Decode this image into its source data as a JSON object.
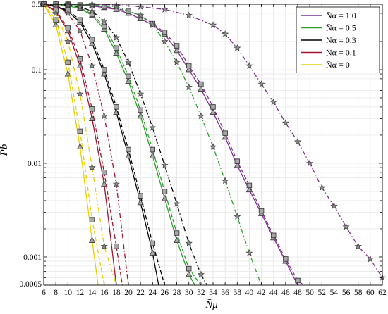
{
  "chart_data": {
    "type": "line",
    "xlabel": "N̄μ",
    "ylabel": "Pb",
    "xlim": [
      6,
      62
    ],
    "ylim": [
      0.0005,
      0.5
    ],
    "yscale": "log",
    "grid": true,
    "legend_position": "top-right",
    "x_ticks": [
      "6",
      "8",
      "10",
      "12",
      "14",
      "16",
      "18",
      "20",
      "22",
      "24",
      "26",
      "28",
      "30",
      "32",
      "34",
      "36",
      "38",
      "40",
      "42",
      "44",
      "46",
      "48",
      "50",
      "52",
      "54",
      "56",
      "58",
      "60",
      "62"
    ],
    "y_ticks": [
      {
        "value": 0.5,
        "label": "0.5"
      },
      {
        "value": 0.1,
        "label": "0.1"
      },
      {
        "value": 0.01,
        "label": "0.01"
      },
      {
        "value": 0.001,
        "label": "0.001"
      },
      {
        "value": 0.0005,
        "label": "0.0005"
      }
    ],
    "legend": [
      {
        "label": "N̄α = 1.0",
        "color": "#7e2f8e"
      },
      {
        "label": "N̄α = 0.5",
        "color": "#2ca02c"
      },
      {
        "label": "N̄α = 0.3",
        "color": "#000000"
      },
      {
        "label": "N̄α = 0.1",
        "color": "#a2142f"
      },
      {
        "label": "N̄α = 0",
        "color": "#e8d000"
      }
    ],
    "series": [
      {
        "group": "N̄α = 1.0",
        "style": "solid",
        "marker": "triangle",
        "color": "#7e2f8e",
        "x": [
          6,
          8,
          10,
          12,
          14,
          16,
          18,
          20,
          22,
          24,
          26,
          28,
          30,
          32,
          34,
          36,
          38,
          40,
          42,
          44,
          46,
          48
        ],
        "y": [
          0.5,
          0.5,
          0.5,
          0.49,
          0.48,
          0.46,
          0.44,
          0.4,
          0.35,
          0.3,
          0.24,
          0.16,
          0.1,
          0.062,
          0.035,
          0.019,
          0.0095,
          0.0052,
          0.0029,
          0.0016,
          0.0009,
          0.0005
        ]
      },
      {
        "group": "N̄α = 1.0",
        "style": "dashed",
        "marker": "square",
        "color": "#7e2f8e",
        "x": [
          6,
          8,
          10,
          12,
          14,
          16,
          18,
          20,
          22,
          24,
          26,
          28,
          30,
          32,
          34,
          36,
          38,
          40,
          42,
          44,
          46,
          48,
          49
        ],
        "y": [
          0.5,
          0.5,
          0.5,
          0.49,
          0.48,
          0.47,
          0.45,
          0.42,
          0.38,
          0.31,
          0.25,
          0.18,
          0.11,
          0.07,
          0.04,
          0.021,
          0.0105,
          0.0058,
          0.0031,
          0.0017,
          0.00095,
          0.00056,
          0.0005
        ]
      },
      {
        "group": "N̄α = 1.0",
        "style": "dashdot",
        "marker": "star",
        "color": "#7e2f8e",
        "x": [
          6,
          10,
          14,
          18,
          22,
          26,
          30,
          34,
          36,
          38,
          40,
          42,
          44,
          46,
          48,
          50,
          52,
          54,
          56,
          58,
          60,
          62
        ],
        "y": [
          0.5,
          0.5,
          0.5,
          0.49,
          0.47,
          0.44,
          0.38,
          0.3,
          0.24,
          0.17,
          0.11,
          0.07,
          0.045,
          0.027,
          0.017,
          0.01,
          0.0055,
          0.0035,
          0.0021,
          0.0013,
          0.00095,
          0.0006
        ]
      },
      {
        "group": "N̄α = 0.5",
        "style": "solid",
        "marker": "triangle",
        "color": "#2ca02c",
        "x": [
          6,
          8,
          10,
          12,
          14,
          16,
          18,
          20,
          22,
          24,
          26,
          28,
          30,
          31
        ],
        "y": [
          0.5,
          0.5,
          0.48,
          0.45,
          0.38,
          0.27,
          0.15,
          0.075,
          0.032,
          0.012,
          0.0042,
          0.0015,
          0.00065,
          0.0005
        ]
      },
      {
        "group": "N̄α = 0.5",
        "style": "dashed",
        "marker": "square",
        "color": "#2ca02c",
        "x": [
          6,
          8,
          10,
          12,
          14,
          16,
          18,
          20,
          22,
          24,
          26,
          28,
          30,
          32
        ],
        "y": [
          0.5,
          0.5,
          0.49,
          0.46,
          0.39,
          0.29,
          0.17,
          0.085,
          0.037,
          0.014,
          0.005,
          0.0018,
          0.00075,
          0.0005
        ]
      },
      {
        "group": "N̄α = 0.5",
        "style": "dashdot",
        "marker": "star",
        "color": "#2ca02c",
        "x": [
          6,
          10,
          14,
          18,
          22,
          24,
          26,
          28,
          30,
          32,
          34,
          36,
          38,
          40,
          42
        ],
        "y": [
          0.5,
          0.5,
          0.49,
          0.47,
          0.38,
          0.3,
          0.2,
          0.12,
          0.065,
          0.032,
          0.015,
          0.0065,
          0.0027,
          0.0011,
          0.0005
        ]
      },
      {
        "group": "N̄α = 0.3",
        "style": "solid",
        "marker": "triangle",
        "color": "#000000",
        "x": [
          6,
          8,
          10,
          12,
          14,
          16,
          18,
          20,
          22,
          24,
          25
        ],
        "y": [
          0.5,
          0.47,
          0.42,
          0.32,
          0.19,
          0.09,
          0.035,
          0.012,
          0.0038,
          0.0011,
          0.0005
        ]
      },
      {
        "group": "N̄α = 0.3",
        "style": "dashed",
        "marker": "square",
        "color": "#000000",
        "x": [
          6,
          8,
          10,
          12,
          14,
          16,
          18,
          20,
          22,
          24,
          26
        ],
        "y": [
          0.5,
          0.48,
          0.43,
          0.34,
          0.21,
          0.1,
          0.04,
          0.014,
          0.0045,
          0.0014,
          0.0005
        ]
      },
      {
        "group": "N̄α = 0.3",
        "style": "dashdot",
        "marker": "star",
        "color": "#000000",
        "x": [
          6,
          10,
          12,
          14,
          16,
          18,
          20,
          22,
          24,
          26,
          28,
          30,
          32,
          33
        ],
        "y": [
          0.5,
          0.49,
          0.47,
          0.42,
          0.33,
          0.22,
          0.12,
          0.055,
          0.024,
          0.0095,
          0.0037,
          0.0014,
          0.00065,
          0.0005
        ]
      },
      {
        "group": "N̄α = 0.1",
        "style": "solid",
        "marker": "triangle",
        "color": "#a2142f",
        "x": [
          6,
          8,
          10,
          12,
          14,
          16,
          18
        ],
        "y": [
          0.5,
          0.42,
          0.26,
          0.11,
          0.03,
          0.006,
          0.0005
        ]
      },
      {
        "group": "N̄α = 0.1",
        "style": "dashed",
        "marker": "square",
        "color": "#a2142f",
        "x": [
          6,
          8,
          10,
          12,
          14,
          16,
          18,
          19
        ],
        "y": [
          0.5,
          0.43,
          0.28,
          0.13,
          0.038,
          0.008,
          0.0013,
          0.0005
        ]
      },
      {
        "group": "N̄α = 0.1",
        "style": "dashdot",
        "marker": "star",
        "color": "#a2142f",
        "x": [
          6,
          8,
          10,
          12,
          14,
          16,
          18,
          20
        ],
        "y": [
          0.5,
          0.48,
          0.4,
          0.26,
          0.11,
          0.032,
          0.006,
          0.0005
        ]
      },
      {
        "group": "N̄α = 0",
        "style": "solid",
        "marker": "triangle",
        "color": "#e8d000",
        "x": [
          6,
          8,
          10,
          12,
          14,
          15
        ],
        "y": [
          0.5,
          0.3,
          0.09,
          0.015,
          0.0015,
          0.0005
        ]
      },
      {
        "group": "N̄α = 0",
        "style": "dashed",
        "marker": "square",
        "color": "#e8d000",
        "x": [
          6,
          8,
          10,
          12,
          14,
          16
        ],
        "y": [
          0.5,
          0.34,
          0.12,
          0.022,
          0.0025,
          0.0005
        ]
      },
      {
        "group": "N̄α = 0",
        "style": "dashdot",
        "marker": "star",
        "color": "#e8d000",
        "x": [
          6,
          8,
          10,
          12,
          14,
          16,
          18
        ],
        "y": [
          0.5,
          0.4,
          0.2,
          0.055,
          0.009,
          0.0013,
          0.0005
        ]
      }
    ]
  }
}
